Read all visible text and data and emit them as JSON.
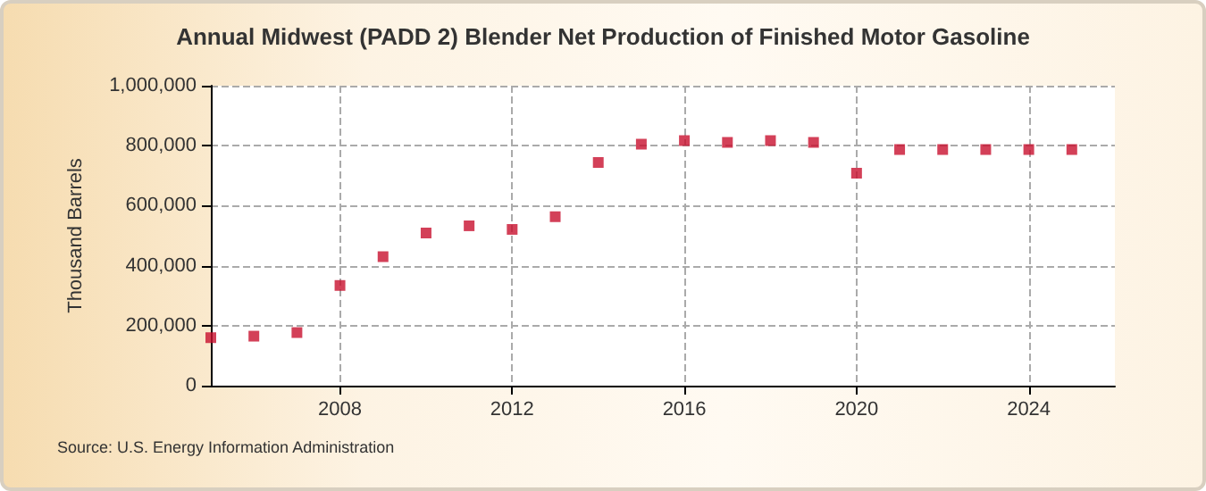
{
  "chart_data": {
    "type": "scatter",
    "title": "Annual Midwest (PADD 2) Blender Net Production of Finished Motor Gasoline",
    "ylabel": "Thousand Barrels",
    "x": [
      2005,
      2006,
      2007,
      2008,
      2009,
      2010,
      2011,
      2012,
      2013,
      2014,
      2015,
      2016,
      2017,
      2018,
      2019,
      2020,
      2021,
      2022,
      2023,
      2024,
      2025
    ],
    "series": [
      {
        "color": "#c8102e",
        "values": [
          160000,
          165000,
          177000,
          334000,
          430000,
          509000,
          533000,
          521000,
          563000,
          744000,
          805000,
          817000,
          811000,
          817000,
          811000,
          708000,
          787000,
          787000,
          787000,
          787000,
          787000
        ]
      }
    ],
    "xlim": [
      2005,
      2026
    ],
    "xticks": [
      2008,
      2012,
      2016,
      2020,
      2024
    ],
    "ylim": [
      0,
      1000000
    ],
    "yticks": [
      0,
      {
        "value": 200000,
        "label": "200,000"
      },
      {
        "value": 400000,
        "label": "400,000"
      },
      {
        "value": 600000,
        "label": "600,000"
      },
      {
        "value": 800000,
        "label": "800,000"
      },
      {
        "value": 1000000,
        "label": "1,000,000"
      }
    ],
    "grid": true,
    "marker": "square",
    "annotations": [
      "Source: U.S. Energy Information Administration"
    ]
  }
}
